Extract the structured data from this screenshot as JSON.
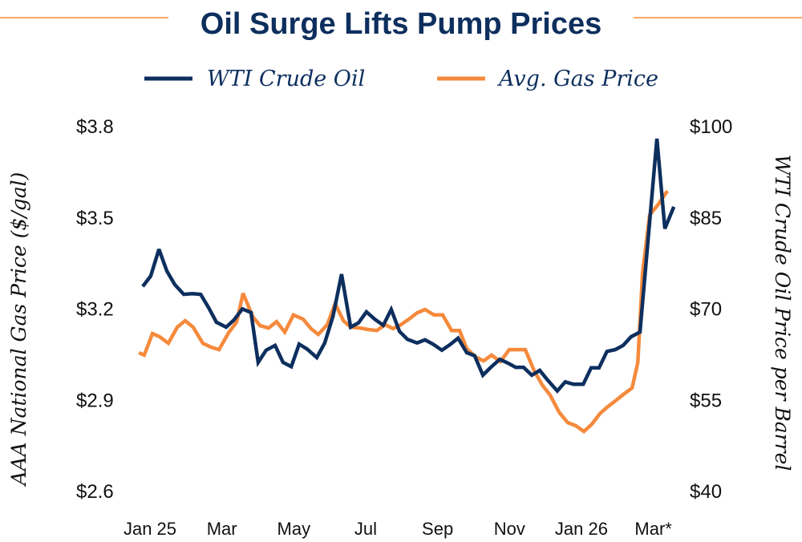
{
  "colors": {
    "wti": "#0d2f5e",
    "gas": "#f58a3c",
    "title": "#0d2f5e"
  },
  "chart_data": {
    "type": "line",
    "title": "Oil Surge Lifts Pump Prices",
    "xlabel": "",
    "ylabel_left": "AAA National Gas Price ($/gal)",
    "ylabel_right": "WTI Crude Oil Price per Barrel",
    "x_units": "months since Jan 2025",
    "x_ticks": [
      0,
      2,
      4,
      6,
      8,
      10,
      12,
      14
    ],
    "x_tick_labels": [
      "Jan 25",
      "Mar",
      "May",
      "Jul",
      "Sep",
      "Nov",
      "Jan 26",
      "Mar*"
    ],
    "xlim": [
      -0.3,
      14.6
    ],
    "ylim_left": [
      2.6,
      3.8
    ],
    "y_ticks_left": [
      3.8,
      3.5,
      3.2,
      2.9,
      2.6
    ],
    "y_tick_labels_left": [
      "$3.8",
      "$3.5",
      "$3.2",
      "$2.9",
      "$2.6"
    ],
    "ylim_right": [
      40,
      100
    ],
    "y_ticks_right": [
      100,
      85,
      70,
      55,
      40
    ],
    "y_tick_labels_right": [
      "$100",
      "$85",
      "$70",
      "$55",
      "$40"
    ],
    "legend_placement": "top-center",
    "grid": false,
    "series": [
      {
        "name": "WTI Crude Oil",
        "axis": "right",
        "x": [
          -0.2,
          0.02,
          0.25,
          0.47,
          0.69,
          0.94,
          1.18,
          1.41,
          1.63,
          1.85,
          2.12,
          2.34,
          2.57,
          2.81,
          3.01,
          3.23,
          3.48,
          3.7,
          3.93,
          4.15,
          4.37,
          4.64,
          4.86,
          5.09,
          5.33,
          5.58,
          5.8,
          6.02,
          6.25,
          6.49,
          6.71,
          6.94,
          7.16,
          7.43,
          7.65,
          7.87,
          8.12,
          8.34,
          8.57,
          8.81,
          9.03,
          9.26,
          9.48,
          9.73,
          9.95,
          10.17,
          10.39,
          10.62,
          10.84,
          11.06,
          11.33,
          11.55,
          11.78,
          12.05,
          12.27,
          12.49,
          12.71,
          12.94,
          13.16,
          13.38,
          13.63,
          14.1,
          14.32,
          14.57
        ],
        "values": [
          73.6,
          75.3,
          79.7,
          76.1,
          73.9,
          72.3,
          72.4,
          72.3,
          70.1,
          67.7,
          66.9,
          68.1,
          69.9,
          69.3,
          61.1,
          63.1,
          63.9,
          61.1,
          60.4,
          64.1,
          63.3,
          61.9,
          64.3,
          68.7,
          75.6,
          66.9,
          67.6,
          69.4,
          68.2,
          67.2,
          69.8,
          66.2,
          64.9,
          64.3,
          64.8,
          64.1,
          63.1,
          64.0,
          65.1,
          62.7,
          62.2,
          59.0,
          60.3,
          61.6,
          61.0,
          60.3,
          60.3,
          59.0,
          59.8,
          58.2,
          56.4,
          57.9,
          57.5,
          57.5,
          60.2,
          60.2,
          62.9,
          63.2,
          63.9,
          65.3,
          66.1,
          97.9,
          83.1,
          86.7
        ]
      },
      {
        "name": "Avg. Gas Price",
        "axis": "left",
        "x": [
          -0.31,
          -0.16,
          0.07,
          0.27,
          0.51,
          0.76,
          0.98,
          1.2,
          1.47,
          1.7,
          1.92,
          2.19,
          2.41,
          2.59,
          2.86,
          3.06,
          3.3,
          3.52,
          3.75,
          3.99,
          4.26,
          4.48,
          4.68,
          4.93,
          5.15,
          5.38,
          5.58,
          5.84,
          6.07,
          6.31,
          6.54,
          6.76,
          6.98,
          7.2,
          7.43,
          7.65,
          7.9,
          8.14,
          8.39,
          8.61,
          8.81,
          9.06,
          9.28,
          9.5,
          9.75,
          9.99,
          10.22,
          10.44,
          10.68,
          10.91,
          11.13,
          11.38,
          11.62,
          11.84,
          12.07,
          12.29,
          12.51,
          12.71,
          12.94,
          13.16,
          13.41,
          13.57,
          13.7,
          13.9,
          14.14,
          14.39
        ],
        "values": [
          3.054,
          3.046,
          3.117,
          3.106,
          3.085,
          3.138,
          3.159,
          3.138,
          3.085,
          3.072,
          3.064,
          3.12,
          3.154,
          3.249,
          3.172,
          3.143,
          3.135,
          3.156,
          3.122,
          3.178,
          3.164,
          3.133,
          3.114,
          3.146,
          3.215,
          3.159,
          3.138,
          3.135,
          3.13,
          3.127,
          3.146,
          3.133,
          3.146,
          3.164,
          3.185,
          3.196,
          3.178,
          3.178,
          3.127,
          3.127,
          3.067,
          3.04,
          3.027,
          3.046,
          3.025,
          3.064,
          3.064,
          3.064,
          2.996,
          2.948,
          2.914,
          2.858,
          2.824,
          2.814,
          2.795,
          2.819,
          2.853,
          2.874,
          2.895,
          2.916,
          2.938,
          3.022,
          3.317,
          3.507,
          3.542,
          3.586
        ]
      }
    ]
  }
}
